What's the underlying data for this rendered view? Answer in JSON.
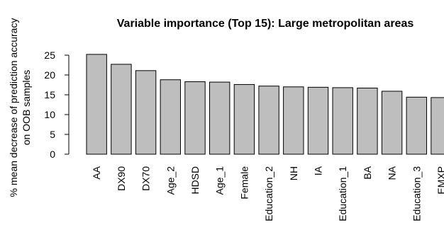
{
  "chart_data": {
    "type": "bar",
    "title": "Variable importance (Top 15): Large metropolitan areas",
    "ylabel_lines": [
      "% mean decrease of prediction accuracy",
      "on OOB samples"
    ],
    "xlabel": "",
    "ylim": [
      0,
      25
    ],
    "yticks": [
      0,
      5,
      10,
      15,
      20,
      25
    ],
    "categories": [
      "AA",
      "DX90",
      "DX70",
      "Age_2",
      "HDSD",
      "Age_1",
      "Female",
      "Education_2",
      "NH",
      "IA",
      "Education_1",
      "BA",
      "NA",
      "Education_3",
      "EMXP"
    ],
    "values": [
      25.2,
      22.7,
      21.1,
      18.8,
      18.3,
      18.2,
      17.6,
      17.2,
      17.0,
      16.9,
      16.8,
      16.7,
      15.9,
      14.4,
      14.3
    ],
    "colors": {
      "bar_fill": "#bebebe",
      "bar_stroke": "#000000"
    },
    "grid": false,
    "legend": "none"
  }
}
